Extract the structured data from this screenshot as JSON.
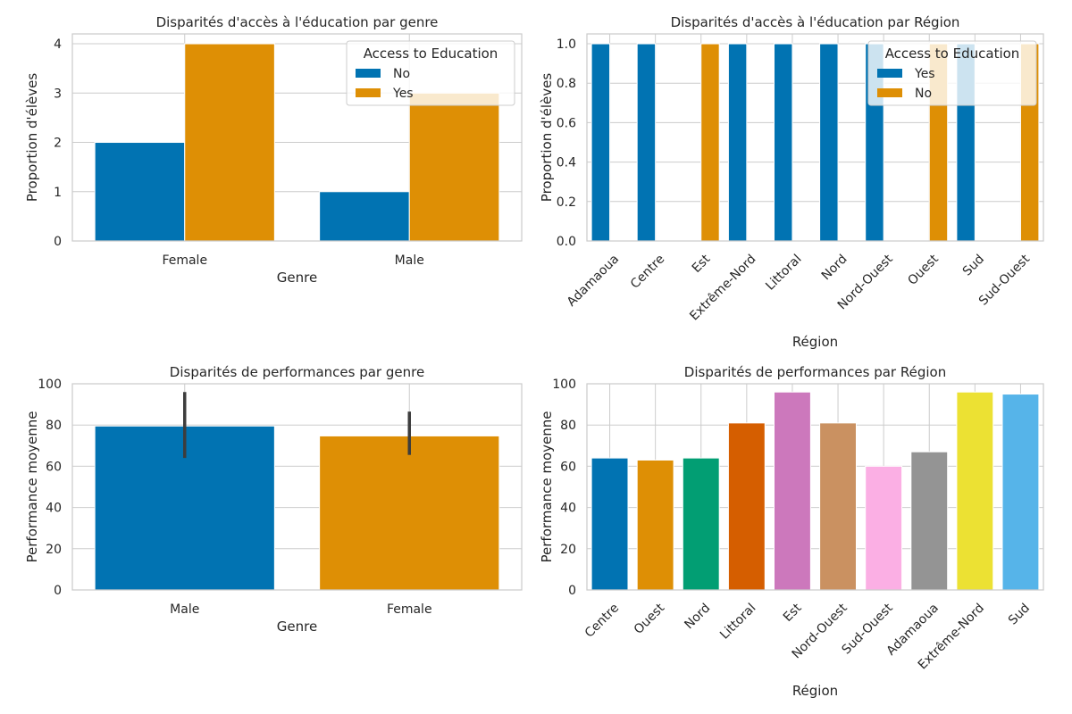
{
  "chart_data": [
    {
      "id": "access-by-gender",
      "type": "bar",
      "title": "Disparités d'accès à l'éducation par genre",
      "xlabel": "Genre",
      "ylabel": "Proportion d'élèves",
      "categories": [
        "Female",
        "Male"
      ],
      "series": [
        {
          "name": "No",
          "color": "#0173b2",
          "values": [
            2,
            1
          ]
        },
        {
          "name": "Yes",
          "color": "#de8f05",
          "values": [
            4,
            3
          ]
        }
      ],
      "ylim": [
        0,
        4.2
      ],
      "yticks": [
        0,
        1,
        2,
        3,
        4
      ],
      "ytick_labels": [
        "0",
        "1",
        "2",
        "3",
        "4"
      ],
      "legend": {
        "title": "Access to Education",
        "placement": "top-right"
      },
      "grid": true,
      "x_rotation": 0
    },
    {
      "id": "access-by-region",
      "type": "bar",
      "title": "Disparités d'accès à l'éducation par Région",
      "xlabel": "Région",
      "ylabel": "Proportion d'élèves",
      "categories": [
        "Adamaoua",
        "Centre",
        "Est",
        "Extrême-Nord",
        "Littoral",
        "Nord",
        "Nord-Ouest",
        "Ouest",
        "Sud",
        "Sud-Ouest"
      ],
      "series": [
        {
          "name": "Yes",
          "color": "#0173b2",
          "values": [
            1,
            1,
            0,
            1,
            1,
            1,
            1,
            0,
            1,
            0
          ]
        },
        {
          "name": "No",
          "color": "#de8f05",
          "values": [
            0,
            0,
            1,
            0,
            0,
            0,
            0,
            1,
            0,
            1
          ]
        }
      ],
      "ylim": [
        0,
        1.05
      ],
      "yticks": [
        0,
        0.2,
        0.4,
        0.6,
        0.8,
        1.0
      ],
      "ytick_labels": [
        "0.0",
        "0.2",
        "0.4",
        "0.6",
        "0.8",
        "1.0"
      ],
      "legend": {
        "title": "Access to Education",
        "placement": "top-right"
      },
      "grid": true,
      "x_rotation": -45
    },
    {
      "id": "performance-by-gender",
      "type": "bar",
      "title": "Disparités de performances par genre",
      "xlabel": "Genre",
      "ylabel": "Performance moyenne",
      "categories": [
        "Male",
        "Female"
      ],
      "values": [
        79.5,
        74.7
      ],
      "colors": [
        "#0173b2",
        "#de8f05"
      ],
      "error_bars": [
        [
          64,
          96
        ],
        [
          65.5,
          86.5
        ]
      ],
      "ylim": [
        0,
        100
      ],
      "yticks": [
        0,
        20,
        40,
        60,
        80,
        100
      ],
      "ytick_labels": [
        "0",
        "20",
        "40",
        "60",
        "80",
        "100"
      ],
      "grid": true,
      "x_rotation": 0
    },
    {
      "id": "performance-by-region",
      "type": "bar",
      "title": "Disparités de performances par Région",
      "xlabel": "Région",
      "ylabel": "Performance moyenne",
      "categories": [
        "Centre",
        "Ouest",
        "Nord",
        "Littoral",
        "Est",
        "Nord-Ouest",
        "Sud-Ouest",
        "Adamaoua",
        "Extrême-Nord",
        "Sud"
      ],
      "values": [
        64,
        63,
        64,
        81,
        96,
        81,
        60,
        67,
        96,
        95
      ],
      "colors": [
        "#0173b2",
        "#de8f05",
        "#029e73",
        "#d55e00",
        "#cc78bc",
        "#ca9161",
        "#fbafe4",
        "#949494",
        "#ece133",
        "#56b4e9"
      ],
      "ylim": [
        0,
        100
      ],
      "yticks": [
        0,
        20,
        40,
        60,
        80,
        100
      ],
      "ytick_labels": [
        "0",
        "20",
        "40",
        "60",
        "80",
        "100"
      ],
      "grid": true,
      "x_rotation": -45
    }
  ]
}
